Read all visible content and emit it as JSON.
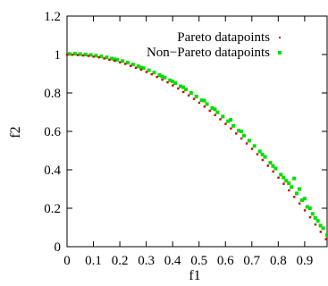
{
  "chart_data": {
    "type": "scatter",
    "xlabel": "f1",
    "ylabel": "f2",
    "xlim": [
      0,
      0.985
    ],
    "ylim": [
      0,
      1.2
    ],
    "xticks": [
      "0",
      "0.1",
      "0.2",
      "0.3",
      "0.4",
      "0.5",
      "0.6",
      "0.7",
      "0.8",
      "0.9"
    ],
    "yticks": [
      "0",
      "0.2",
      "0.4",
      "0.6",
      "0.8",
      "1",
      "1.2"
    ],
    "grid": false,
    "legend_position": "top-right",
    "series": [
      {
        "name": "Pareto datapoints",
        "color": "#cc0000",
        "marker": "dot",
        "points": [
          [
            0.0,
            1.0
          ],
          [
            0.02,
            1.0
          ],
          [
            0.04,
            0.998
          ],
          [
            0.06,
            0.996
          ],
          [
            0.08,
            0.994
          ],
          [
            0.1,
            0.99
          ],
          [
            0.12,
            0.986
          ],
          [
            0.14,
            0.98
          ],
          [
            0.16,
            0.974
          ],
          [
            0.18,
            0.968
          ],
          [
            0.2,
            0.96
          ],
          [
            0.22,
            0.952
          ],
          [
            0.24,
            0.942
          ],
          [
            0.26,
            0.932
          ],
          [
            0.28,
            0.922
          ],
          [
            0.3,
            0.91
          ],
          [
            0.32,
            0.898
          ],
          [
            0.34,
            0.884
          ],
          [
            0.36,
            0.87
          ],
          [
            0.38,
            0.856
          ],
          [
            0.4,
            0.84
          ],
          [
            0.42,
            0.824
          ],
          [
            0.44,
            0.806
          ],
          [
            0.46,
            0.788
          ],
          [
            0.48,
            0.77
          ],
          [
            0.5,
            0.75
          ],
          [
            0.52,
            0.73
          ],
          [
            0.54,
            0.708
          ],
          [
            0.56,
            0.686
          ],
          [
            0.58,
            0.664
          ],
          [
            0.6,
            0.64
          ],
          [
            0.62,
            0.616
          ],
          [
            0.64,
            0.59
          ],
          [
            0.66,
            0.564
          ],
          [
            0.68,
            0.538
          ],
          [
            0.7,
            0.51
          ],
          [
            0.72,
            0.482
          ],
          [
            0.74,
            0.452
          ],
          [
            0.76,
            0.422
          ],
          [
            0.78,
            0.392
          ],
          [
            0.8,
            0.36
          ],
          [
            0.82,
            0.328
          ],
          [
            0.84,
            0.294
          ],
          [
            0.86,
            0.26
          ],
          [
            0.88,
            0.226
          ],
          [
            0.9,
            0.19
          ],
          [
            0.92,
            0.154
          ],
          [
            0.94,
            0.116
          ],
          [
            0.96,
            0.078
          ],
          [
            0.98,
            0.04
          ]
        ]
      },
      {
        "name": "Non−Pareto datapoints",
        "color": "#00dd00",
        "marker": "square",
        "points": [
          [
            0.01,
            1.003
          ],
          [
            0.03,
            1.004
          ],
          [
            0.05,
            1.002
          ],
          [
            0.07,
            1.0
          ],
          [
            0.09,
            0.998
          ],
          [
            0.11,
            0.994
          ],
          [
            0.13,
            0.99
          ],
          [
            0.15,
            0.985
          ],
          [
            0.17,
            0.979
          ],
          [
            0.19,
            0.973
          ],
          [
            0.21,
            0.966
          ],
          [
            0.23,
            0.958
          ],
          [
            0.25,
            0.948
          ],
          [
            0.27,
            0.939
          ],
          [
            0.29,
            0.929
          ],
          [
            0.31,
            0.918
          ],
          [
            0.33,
            0.906
          ],
          [
            0.35,
            0.893
          ],
          [
            0.37,
            0.88
          ],
          [
            0.39,
            0.866
          ],
          [
            0.41,
            0.851
          ],
          [
            0.43,
            0.835
          ],
          [
            0.45,
            0.818
          ],
          [
            0.47,
            0.8
          ],
          [
            0.49,
            0.782
          ],
          [
            0.51,
            0.762
          ],
          [
            0.53,
            0.742
          ],
          [
            0.55,
            0.721
          ],
          [
            0.57,
            0.699
          ],
          [
            0.59,
            0.677
          ],
          [
            0.61,
            0.653
          ],
          [
            0.63,
            0.629
          ],
          [
            0.65,
            0.604
          ],
          [
            0.67,
            0.578
          ],
          [
            0.69,
            0.552
          ],
          [
            0.71,
            0.524
          ],
          [
            0.73,
            0.496
          ],
          [
            0.75,
            0.467
          ],
          [
            0.77,
            0.437
          ],
          [
            0.79,
            0.407
          ],
          [
            0.81,
            0.375
          ],
          [
            0.83,
            0.343
          ],
          [
            0.85,
            0.31
          ],
          [
            0.87,
            0.277
          ],
          [
            0.89,
            0.242
          ],
          [
            0.91,
            0.207
          ],
          [
            0.93,
            0.171
          ],
          [
            0.95,
            0.134
          ],
          [
            0.97,
            0.096
          ],
          [
            0.18,
            0.975
          ],
          [
            0.28,
            0.932
          ],
          [
            0.36,
            0.886
          ],
          [
            0.4,
            0.86
          ],
          [
            0.44,
            0.83
          ],
          [
            0.52,
            0.76
          ],
          [
            0.56,
            0.715
          ],
          [
            0.62,
            0.66
          ],
          [
            0.66,
            0.6
          ],
          [
            0.74,
            0.48
          ],
          [
            0.78,
            0.42
          ],
          [
            0.82,
            0.36
          ],
          [
            0.84,
            0.33
          ],
          [
            0.86,
            0.355
          ],
          [
            0.88,
            0.3
          ],
          [
            0.9,
            0.25
          ],
          [
            0.92,
            0.2
          ],
          [
            0.94,
            0.15
          ],
          [
            0.96,
            0.11
          ],
          [
            0.985,
            0.06
          ]
        ]
      }
    ]
  }
}
